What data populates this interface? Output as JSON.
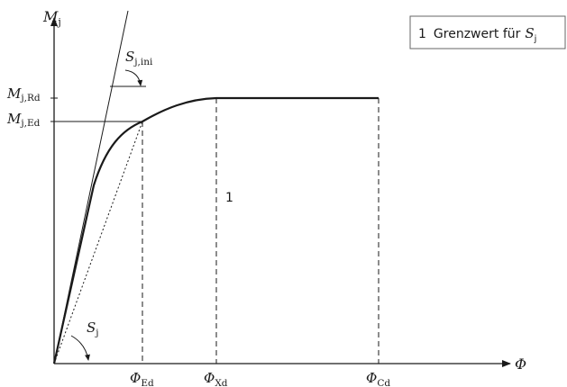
{
  "diagram": {
    "axes": {
      "y_symbol": "M",
      "y_sub": "j",
      "x_symbol": "Φ"
    },
    "y_labels": [
      {
        "symbol": "M",
        "sub": "j,Rd"
      },
      {
        "symbol": "M",
        "sub": "j,Ed"
      }
    ],
    "x_labels": [
      {
        "symbol": "Φ",
        "sub": "Ed"
      },
      {
        "symbol": "Φ",
        "sub": "Xd"
      },
      {
        "symbol": "Φ",
        "sub": "Cd"
      }
    ],
    "stiffness_labels": {
      "initial": {
        "symbol": "S",
        "sub": "j,ini"
      },
      "secant": {
        "symbol": "S",
        "sub": "j"
      }
    },
    "marker": "1",
    "legend": {
      "number": "1",
      "text": "Grenzwert für",
      "symbol": "S",
      "sub": "j"
    }
  }
}
